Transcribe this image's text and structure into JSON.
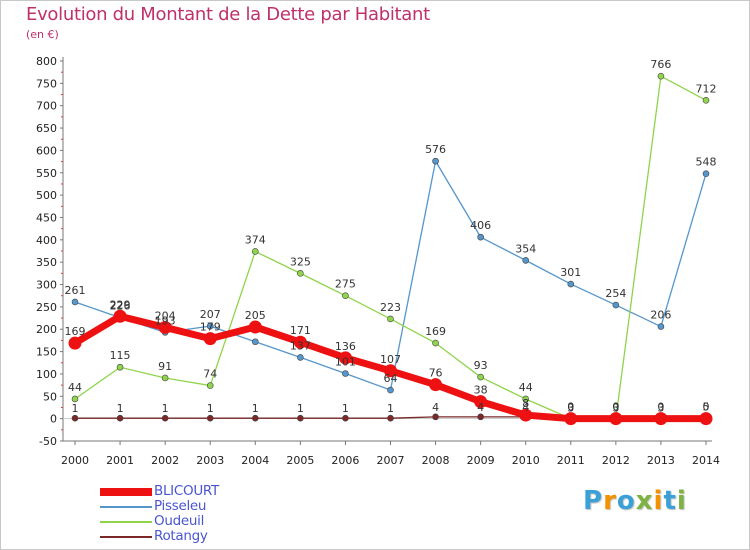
{
  "title": "Evolution du Montant de la Dette par Habitant",
  "subtitle": "(en €)",
  "logo": {
    "letters": [
      "P",
      "r",
      "o",
      "x",
      "i",
      "t",
      "i"
    ],
    "colors": [
      "#3aa0d8",
      "#f39200",
      "#3aa0d8",
      "#7cb342",
      "#f39200",
      "#3aa0d8",
      "#7cb342"
    ]
  },
  "chart_data": {
    "type": "line",
    "x": [
      "2000",
      "2001",
      "2002",
      "2003",
      "2004",
      "2005",
      "2006",
      "2007",
      "2008",
      "2009",
      "2010",
      "2011",
      "2012",
      "2013",
      "2014"
    ],
    "ylim": [
      -50,
      800
    ],
    "yticks": [
      "-50",
      "0",
      "50",
      "100",
      "150",
      "200",
      "250",
      "300",
      "350",
      "400",
      "450",
      "500",
      "550",
      "600",
      "650",
      "700",
      "750",
      "800"
    ],
    "grid": false,
    "legend_position": "bottom-left",
    "series": [
      {
        "name": "BLICOURT",
        "color": "#ee1111",
        "values": [
          169,
          229,
          204,
          179,
          205,
          171,
          136,
          107,
          76,
          38,
          8,
          0,
          0,
          0,
          0
        ],
        "labels": [
          "169",
          "229",
          "204",
          "179",
          "205",
          "171",
          "136",
          "107",
          "76",
          "38",
          "8",
          "0",
          "0",
          "0",
          "0"
        ]
      },
      {
        "name": "Pisseleu",
        "color": "#5596cc",
        "values": [
          261,
          226,
          193,
          207,
          172,
          137,
          101,
          64,
          576,
          406,
          354,
          301,
          254,
          206,
          548
        ],
        "labels": [
          "261",
          "226",
          "193",
          "207",
          "",
          "137",
          "101",
          "64",
          "576",
          "406",
          "354",
          "301",
          "254",
          "206",
          "548"
        ]
      },
      {
        "name": "Oudeuil",
        "color": "#8fd44a",
        "values": [
          44,
          115,
          91,
          74,
          374,
          325,
          275,
          223,
          169,
          93,
          44,
          0,
          0,
          766,
          712
        ],
        "labels": [
          "44",
          "115",
          "91",
          "74",
          "374",
          "325",
          "275",
          "223",
          "169",
          "93",
          "44",
          "0",
          "0",
          "766",
          "712"
        ]
      },
      {
        "name": "Rotangy",
        "color": "#7a2828",
        "values": [
          1,
          1,
          1,
          1,
          1,
          1,
          1,
          1,
          4,
          4,
          4,
          3,
          3,
          3,
          5
        ],
        "labels": [
          "1",
          "1",
          "1",
          "1",
          "1",
          "1",
          "1",
          "1",
          "4",
          "4",
          "4",
          "3",
          "3",
          "3",
          "5"
        ]
      }
    ]
  }
}
